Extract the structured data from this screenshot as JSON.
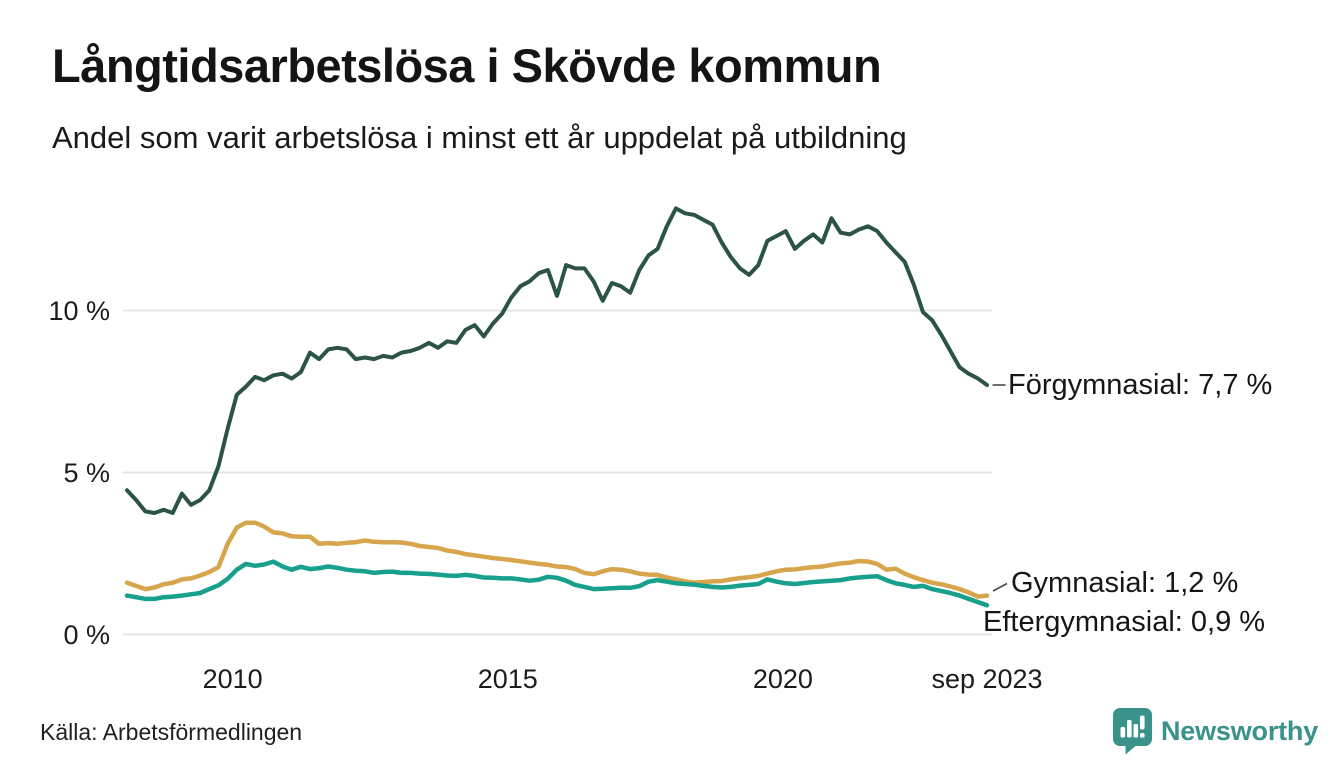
{
  "header": {
    "title": "Långtidsarbetslösa i Skövde kommun",
    "subtitle": "Andel som varit arbetslösa i minst ett år uppdelat på utbildning"
  },
  "chart_data": {
    "type": "line",
    "title": "Långtidsarbetslösa i Skövde kommun",
    "subtitle": "Andel som varit arbetslösa i minst ett år uppdelat på utbildning",
    "unit": "%",
    "grid": true,
    "ylim": [
      0,
      13.8
    ],
    "x_range": {
      "start_decimal_year": 2008.08,
      "end_decimal_year": 2023.71,
      "end_tick_label": "sep 2023"
    },
    "x_ticks": [
      {
        "label": "2010",
        "year": 2010
      },
      {
        "label": "2015",
        "year": 2015
      },
      {
        "label": "2020",
        "year": 2020
      },
      {
        "label": "sep 2023",
        "year": 2023.71
      }
    ],
    "y_ticks": [
      {
        "label": "0 %",
        "value": 0
      },
      {
        "label": "5 %",
        "value": 5
      },
      {
        "label": "10 %",
        "value": 10
      }
    ],
    "series": [
      {
        "name": "Förgymnasial",
        "color": "#2c5348",
        "end_label": "Förgymnasial: 7,7 %",
        "latest_value_label": "7,7 %",
        "values": [
          4.45,
          4.15,
          3.8,
          3.75,
          3.85,
          3.75,
          4.35,
          4.0,
          4.15,
          4.45,
          5.2,
          6.35,
          7.4,
          7.65,
          7.95,
          7.85,
          8.0,
          8.05,
          7.9,
          8.1,
          8.7,
          8.5,
          8.8,
          8.85,
          8.8,
          8.5,
          8.55,
          8.5,
          8.6,
          8.55,
          8.7,
          8.75,
          8.85,
          9.0,
          8.85,
          9.05,
          9.0,
          9.4,
          9.55,
          9.2,
          9.6,
          9.9,
          10.4,
          10.75,
          10.9,
          11.15,
          11.25,
          10.45,
          11.4,
          11.3,
          11.3,
          10.9,
          10.3,
          10.85,
          10.75,
          10.55,
          11.25,
          11.7,
          11.9,
          12.6,
          13.15,
          13.0,
          12.95,
          12.8,
          12.65,
          12.1,
          11.65,
          11.3,
          11.1,
          11.4,
          12.15,
          12.3,
          12.45,
          11.9,
          12.15,
          12.35,
          12.1,
          12.85,
          12.4,
          12.35,
          12.5,
          12.6,
          12.45,
          12.1,
          11.8,
          11.5,
          10.8,
          9.95,
          9.7,
          9.25,
          8.75,
          8.25,
          8.05,
          7.9,
          7.7
        ]
      },
      {
        "name": "Gymnasial",
        "color": "#d7a54c",
        "end_label": "Gymnasial: 1,2 %",
        "latest_value_label": "1,2 %",
        "values": [
          1.6,
          1.5,
          1.4,
          1.45,
          1.55,
          1.6,
          1.7,
          1.73,
          1.82,
          1.93,
          2.08,
          2.8,
          3.3,
          3.45,
          3.45,
          3.33,
          3.15,
          3.12,
          3.03,
          3.02,
          3.02,
          2.8,
          2.82,
          2.8,
          2.83,
          2.85,
          2.9,
          2.86,
          2.85,
          2.85,
          2.84,
          2.8,
          2.73,
          2.7,
          2.67,
          2.59,
          2.55,
          2.48,
          2.44,
          2.4,
          2.36,
          2.33,
          2.3,
          2.26,
          2.22,
          2.18,
          2.15,
          2.1,
          2.08,
          2.02,
          1.9,
          1.86,
          1.95,
          2.02,
          2.0,
          1.95,
          1.88,
          1.85,
          1.84,
          1.76,
          1.7,
          1.64,
          1.6,
          1.62,
          1.64,
          1.65,
          1.7,
          1.74,
          1.77,
          1.81,
          1.88,
          1.95,
          2.0,
          2.01,
          2.05,
          2.08,
          2.1,
          2.15,
          2.19,
          2.22,
          2.27,
          2.25,
          2.18,
          2.0,
          2.03,
          1.88,
          1.77,
          1.68,
          1.6,
          1.55,
          1.48,
          1.4,
          1.3,
          1.17,
          1.2
        ]
      },
      {
        "name": "Eftergymnasial",
        "color": "#17a08c",
        "end_label": "Eftergymnasial: 0,9 %",
        "latest_value_label": "0,9 %",
        "values": [
          1.2,
          1.15,
          1.1,
          1.1,
          1.15,
          1.17,
          1.2,
          1.24,
          1.28,
          1.4,
          1.52,
          1.72,
          2.0,
          2.18,
          2.12,
          2.16,
          2.25,
          2.1,
          2.0,
          2.09,
          2.02,
          2.05,
          2.1,
          2.06,
          2.0,
          1.97,
          1.95,
          1.9,
          1.93,
          1.94,
          1.9,
          1.9,
          1.88,
          1.87,
          1.85,
          1.82,
          1.81,
          1.84,
          1.81,
          1.76,
          1.75,
          1.73,
          1.73,
          1.7,
          1.66,
          1.69,
          1.78,
          1.75,
          1.66,
          1.53,
          1.47,
          1.4,
          1.41,
          1.43,
          1.44,
          1.44,
          1.49,
          1.63,
          1.68,
          1.63,
          1.58,
          1.56,
          1.54,
          1.5,
          1.47,
          1.45,
          1.47,
          1.51,
          1.53,
          1.56,
          1.7,
          1.63,
          1.58,
          1.56,
          1.59,
          1.62,
          1.64,
          1.66,
          1.68,
          1.73,
          1.76,
          1.78,
          1.8,
          1.68,
          1.58,
          1.53,
          1.47,
          1.5,
          1.4,
          1.34,
          1.28,
          1.2,
          1.1,
          1.0,
          0.9
        ]
      }
    ],
    "annotation_style": "series labels with latest value at right edge of plot"
  },
  "footer": {
    "source": "Källa: Arbetsförmedlingen",
    "brand": "Newsworthy",
    "brand_color": "#3a938b"
  }
}
